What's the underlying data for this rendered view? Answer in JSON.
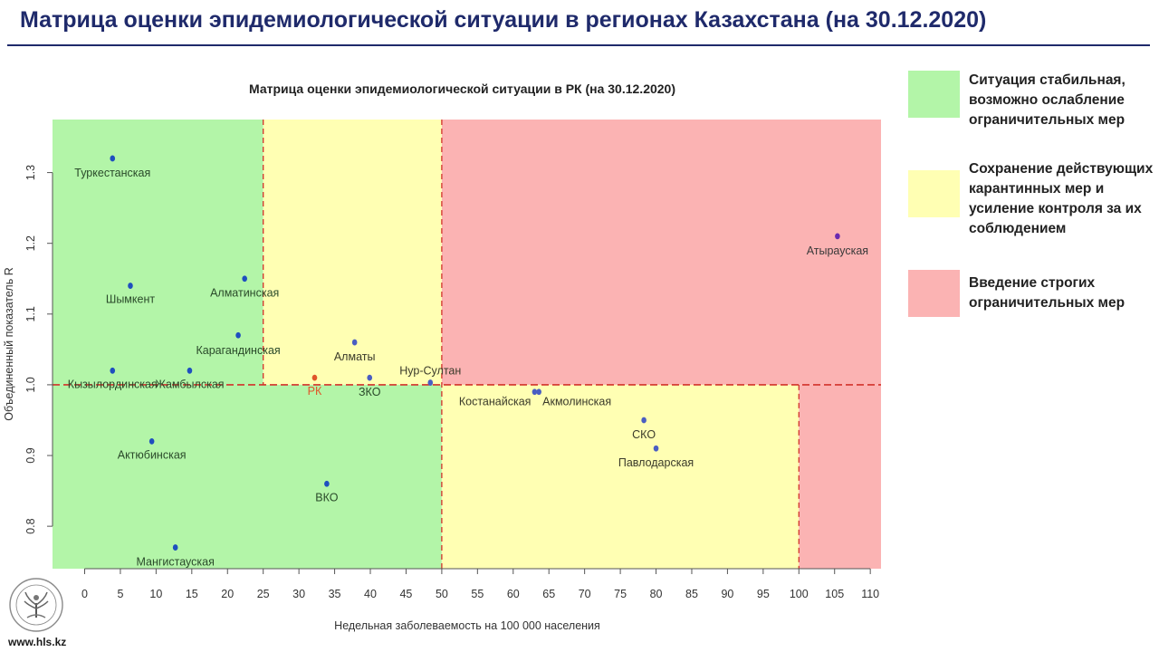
{
  "header": {
    "title": "Матрица оценки эпидемиологической ситуации в регионах Казахстана (на 30.12.2020)"
  },
  "legend": [
    {
      "text": "Ситуация стабильная,\nвозможно ослабление\nограничительных мер",
      "color": "#b3f5a8"
    },
    {
      "text": "Сохранение действующих\nкарантинных мер и\nусиление контроля за их\nсоблюдением",
      "color": "#ffffb3"
    },
    {
      "text": "Введение строгих\nограничительных мер",
      "color": "#fbb3b3"
    }
  ],
  "footer": {
    "site": "www.hls.kz"
  },
  "chart_data": {
    "type": "scatter",
    "title": "Матрица оценки эпидемиологической ситуации в РК (на 30.12.2020)",
    "xlabel": "Недельная заболеваемость на 100 000 населения",
    "ylabel": "Объединенный показатель R",
    "xlim": [
      -4.5,
      111.5
    ],
    "ylim": [
      0.74,
      1.375
    ],
    "xticks": [
      "0",
      "5",
      "10",
      "15",
      "20",
      "25",
      "30",
      "35",
      "40",
      "45",
      "50",
      "55",
      "60",
      "65",
      "70",
      "75",
      "80",
      "85",
      "90",
      "95",
      "100",
      "105",
      "110"
    ],
    "xtick_values": [
      0,
      5,
      10,
      15,
      20,
      25,
      30,
      35,
      40,
      45,
      50,
      55,
      60,
      65,
      70,
      75,
      80,
      85,
      90,
      95,
      100,
      105,
      110
    ],
    "yticks": [
      "0.8",
      "0.9",
      "1.0",
      "1.1",
      "1.2",
      "1.3"
    ],
    "ytick_values": [
      0.8,
      0.9,
      1.0,
      1.1,
      1.2,
      1.3
    ],
    "thresholds": {
      "x": [
        25,
        50,
        100
      ],
      "y": 1.0
    },
    "zone_colors": {
      "green": "#b3f5a8",
      "yellow": "#ffffb3",
      "red": "#fbb3b3",
      "line": "#d2322b"
    },
    "points": [
      {
        "label": "Туркестанская",
        "x": 3.9,
        "y": 1.32,
        "color": "#1f4fbf",
        "label_color": "#2a4a2a"
      },
      {
        "label": "Шымкент",
        "x": 6.4,
        "y": 1.14,
        "color": "#1f4fbf",
        "label_color": "#2a4a2a"
      },
      {
        "label": "Алматинская",
        "x": 22.4,
        "y": 1.15,
        "color": "#1f4fbf",
        "label_color": "#2a4a2a"
      },
      {
        "label": "Карагандинская",
        "x": 21.5,
        "y": 1.07,
        "color": "#1f4fbf",
        "label_color": "#2a4a2a"
      },
      {
        "label": "Кызылординская",
        "x": 3.9,
        "y": 1.02,
        "color": "#1f4fbf",
        "label_color": "#2a4a2a"
      },
      {
        "label": "Жамбылская",
        "x": 14.7,
        "y": 1.02,
        "color": "#1f4fbf",
        "label_color": "#2a4a2a"
      },
      {
        "label": "Актюбинская",
        "x": 9.4,
        "y": 0.92,
        "color": "#1f4fbf",
        "label_color": "#2a4a2a"
      },
      {
        "label": "ВКО",
        "x": 33.9,
        "y": 0.86,
        "color": "#1f4fbf",
        "label_color": "#2a4a2a"
      },
      {
        "label": "Мангистауская",
        "x": 12.7,
        "y": 0.77,
        "color": "#1f4fbf",
        "label_color": "#2a4a2a"
      },
      {
        "label": "Алматы",
        "x": 37.8,
        "y": 1.06,
        "color": "#4a5ec2",
        "label_color": "#3a3a2a"
      },
      {
        "label": "РК",
        "x": 32.2,
        "y": 1.01,
        "color": "#e0552a",
        "label_color": "#e0552a"
      },
      {
        "label": "ЗКО",
        "x": 39.9,
        "y": 1.01,
        "color": "#4a5ec2",
        "label_color": "#2a4a2a"
      },
      {
        "label": "Нур-Султан",
        "x": 48.4,
        "y": 1.003,
        "color": "#4a5ec2",
        "label_color": "#3a3a2a"
      },
      {
        "label": "Костанайская",
        "x": 63.0,
        "y": 0.99,
        "color": "#4a5ec2",
        "label_color": "#3a3a2a"
      },
      {
        "label": "Акмолинская",
        "x": 63.6,
        "y": 0.99,
        "color": "#4a5ec2",
        "label_color": "#3a3a2a"
      },
      {
        "label": "СКО",
        "x": 78.3,
        "y": 0.95,
        "color": "#4a5ec2",
        "label_color": "#3a3a2a"
      },
      {
        "label": "Павлодарская",
        "x": 80.0,
        "y": 0.91,
        "color": "#4a5ec2",
        "label_color": "#3a3a2a"
      },
      {
        "label": "Атырауская",
        "x": 105.4,
        "y": 1.21,
        "color": "#6a2ab0",
        "label_color": "#3a3a3a"
      }
    ]
  }
}
